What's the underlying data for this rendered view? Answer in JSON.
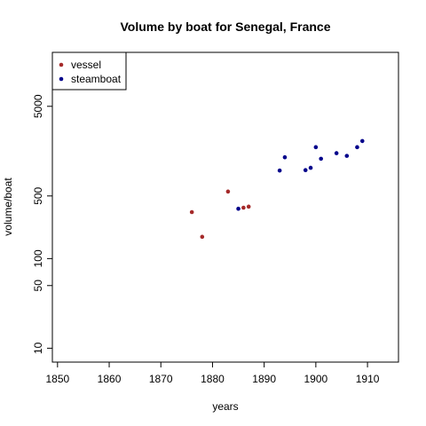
{
  "chart_data": {
    "type": "scatter",
    "title": "Volume by boat for Senegal, France",
    "xlabel": "years",
    "ylabel": "volume/boat",
    "x_scale": "linear",
    "y_scale": "log",
    "xlim": [
      1849,
      1916
    ],
    "ylim": [
      7,
      20000
    ],
    "x_ticks": [
      1850,
      1860,
      1870,
      1880,
      1890,
      1900,
      1910
    ],
    "y_ticks": [
      10,
      50,
      100,
      500,
      5000
    ],
    "legend_position": "top-left",
    "grid": false,
    "series": [
      {
        "name": "vessel",
        "color": "#a52a2a",
        "points": [
          {
            "x": 1876,
            "y": 330
          },
          {
            "x": 1878,
            "y": 175
          },
          {
            "x": 1883,
            "y": 560
          },
          {
            "x": 1886,
            "y": 370
          },
          {
            "x": 1887,
            "y": 380
          }
        ]
      },
      {
        "name": "steamboat",
        "color": "#00008b",
        "points": [
          {
            "x": 1885,
            "y": 360
          },
          {
            "x": 1893,
            "y": 960
          },
          {
            "x": 1894,
            "y": 1350
          },
          {
            "x": 1898,
            "y": 970
          },
          {
            "x": 1899,
            "y": 1030
          },
          {
            "x": 1900,
            "y": 1750
          },
          {
            "x": 1901,
            "y": 1300
          },
          {
            "x": 1904,
            "y": 1500
          },
          {
            "x": 1906,
            "y": 1400
          },
          {
            "x": 1908,
            "y": 1750
          },
          {
            "x": 1909,
            "y": 2050
          }
        ]
      }
    ]
  }
}
